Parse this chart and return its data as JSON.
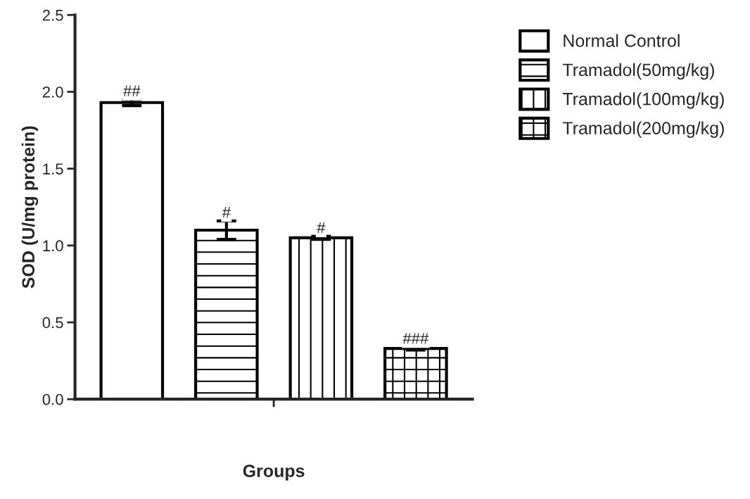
{
  "chart_data": {
    "type": "bar",
    "xlabel": "Groups",
    "ylabel": "SOD (U/mg protein)",
    "categories": [
      null,
      null,
      null,
      null
    ],
    "series": [
      {
        "name": "Normal Control",
        "color": "#ffffff",
        "values": [
          1.93,
          null,
          null,
          null
        ],
        "errors": [
          0.02,
          null,
          null,
          null
        ]
      },
      {
        "name": "Tramadol(50mg/kg)",
        "color": "#000000",
        "values": [
          null,
          1.1,
          null,
          null
        ],
        "errors": [
          null,
          0.06,
          null,
          null
        ]
      },
      {
        "name": "Tramadol(100mg/kg)",
        "color": "#000000",
        "values": [
          null,
          null,
          1.05,
          null
        ],
        "errors": [
          null,
          null,
          0.01,
          null
        ]
      },
      {
        "name": "Tramadol(200mg/kg)",
        "color": "#000000",
        "values": [
          null,
          null,
          null,
          0.33
        ],
        "errors": [
          null,
          null,
          null,
          0.01
        ]
      }
    ],
    "annotations": [
      {
        "text": "##",
        "y": 1.95
      },
      {
        "text": "#",
        "y": 1.16
      },
      {
        "text": "#",
        "y": 1.06
      },
      {
        "text": "###",
        "y": 0.34
      }
    ],
    "ylim": [
      0,
      2.5
    ],
    "yticks": [
      {
        "value": 0,
        "label": "0.0"
      },
      {
        "value": 0.5,
        "label": "0.5"
      },
      {
        "value": 1,
        "label": "1.0"
      },
      {
        "value": 1.5,
        "label": "1.5"
      },
      {
        "value": 2,
        "label": "2.0"
      },
      {
        "value": 2.5,
        "label": "2.5"
      }
    ],
    "grid": false,
    "legend": "top right"
  }
}
